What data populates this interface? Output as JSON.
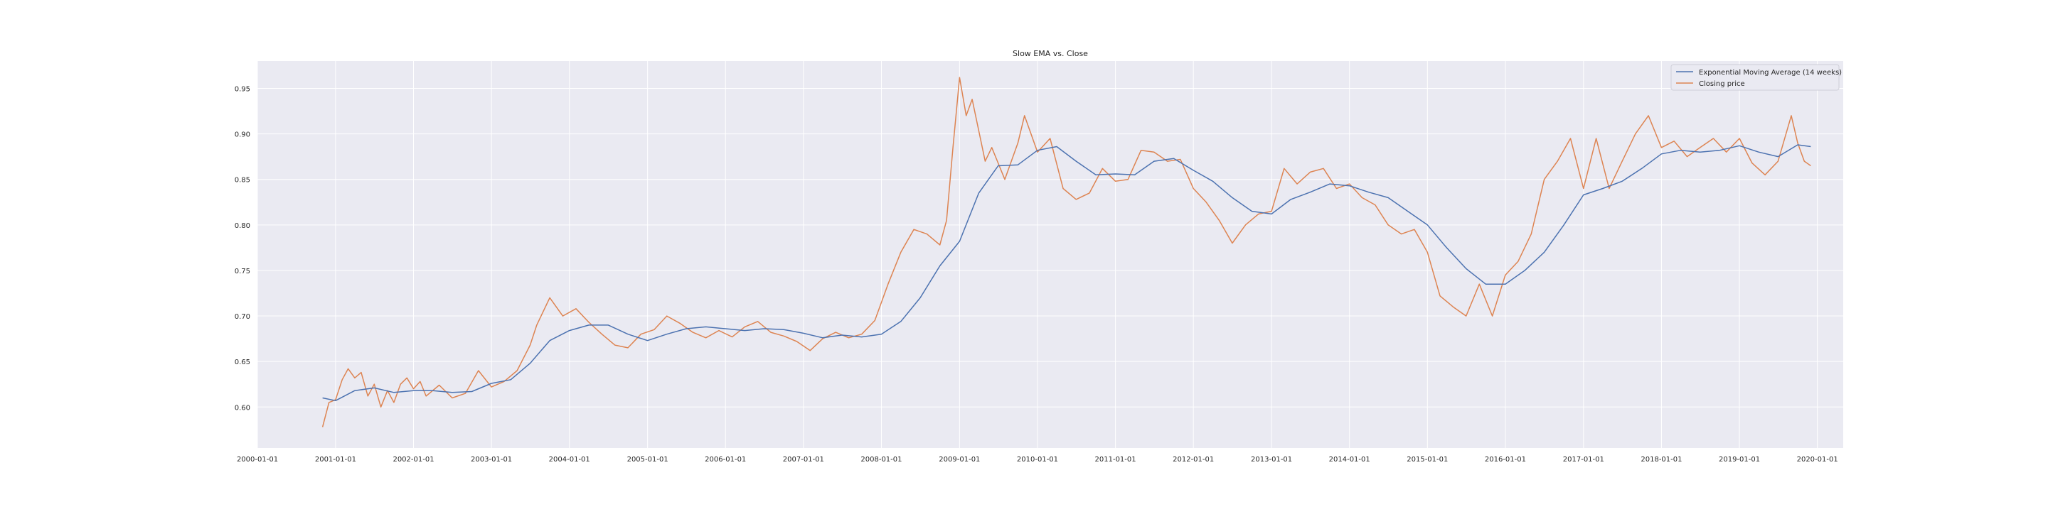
{
  "chart_data": {
    "type": "line",
    "title": "Slow EMA vs. Close",
    "xlabel": "",
    "ylabel": "",
    "xlim": [
      "2000-01-01",
      "2020-05-01"
    ],
    "ylim": [
      0.555,
      0.98
    ],
    "grid": true,
    "legend_position": "top-right",
    "x_ticks": [
      "2000-01-01",
      "2001-01-01",
      "2002-01-01",
      "2003-01-01",
      "2004-01-01",
      "2005-01-01",
      "2006-01-01",
      "2007-01-01",
      "2008-01-01",
      "2009-01-01",
      "2010-01-01",
      "2011-01-01",
      "2012-01-01",
      "2013-01-01",
      "2014-01-01",
      "2015-01-01",
      "2016-01-01",
      "2017-01-01",
      "2018-01-01",
      "2019-01-01",
      "2020-01-01"
    ],
    "y_ticks": [
      "0.60",
      "0.65",
      "0.70",
      "0.75",
      "0.80",
      "0.85",
      "0.90",
      "0.95"
    ],
    "series": [
      {
        "name": "Exponential Moving Average (14 weeks)",
        "color": "#4c72b0",
        "points": [
          [
            "2000-11-01",
            0.61
          ],
          [
            "2001-01-01",
            0.607
          ],
          [
            "2001-04-01",
            0.618
          ],
          [
            "2001-07-01",
            0.621
          ],
          [
            "2001-10-01",
            0.616
          ],
          [
            "2002-01-01",
            0.618
          ],
          [
            "2002-04-01",
            0.618
          ],
          [
            "2002-07-01",
            0.616
          ],
          [
            "2002-10-01",
            0.617
          ],
          [
            "2003-01-01",
            0.626
          ],
          [
            "2003-04-01",
            0.63
          ],
          [
            "2003-07-01",
            0.648
          ],
          [
            "2003-10-01",
            0.673
          ],
          [
            "2004-01-01",
            0.684
          ],
          [
            "2004-04-01",
            0.69
          ],
          [
            "2004-07-01",
            0.69
          ],
          [
            "2004-10-01",
            0.68
          ],
          [
            "2005-01-01",
            0.673
          ],
          [
            "2005-04-01",
            0.68
          ],
          [
            "2005-07-01",
            0.686
          ],
          [
            "2005-10-01",
            0.688
          ],
          [
            "2006-01-01",
            0.686
          ],
          [
            "2006-04-01",
            0.684
          ],
          [
            "2006-07-01",
            0.686
          ],
          [
            "2006-10-01",
            0.685
          ],
          [
            "2007-01-01",
            0.681
          ],
          [
            "2007-04-01",
            0.676
          ],
          [
            "2007-07-01",
            0.679
          ],
          [
            "2007-10-01",
            0.677
          ],
          [
            "2008-01-01",
            0.68
          ],
          [
            "2008-04-01",
            0.694
          ],
          [
            "2008-07-01",
            0.72
          ],
          [
            "2008-10-01",
            0.755
          ],
          [
            "2009-01-01",
            0.782
          ],
          [
            "2009-04-01",
            0.835
          ],
          [
            "2009-07-01",
            0.865
          ],
          [
            "2009-10-01",
            0.866
          ],
          [
            "2010-01-01",
            0.882
          ],
          [
            "2010-04-01",
            0.886
          ],
          [
            "2010-07-01",
            0.87
          ],
          [
            "2010-10-01",
            0.855
          ],
          [
            "2011-01-01",
            0.856
          ],
          [
            "2011-04-01",
            0.855
          ],
          [
            "2011-07-01",
            0.87
          ],
          [
            "2011-10-01",
            0.873
          ],
          [
            "2012-01-01",
            0.86
          ],
          [
            "2012-04-01",
            0.848
          ],
          [
            "2012-07-01",
            0.83
          ],
          [
            "2012-10-01",
            0.815
          ],
          [
            "2013-01-01",
            0.812
          ],
          [
            "2013-04-01",
            0.828
          ],
          [
            "2013-07-01",
            0.836
          ],
          [
            "2013-10-01",
            0.845
          ],
          [
            "2014-01-01",
            0.843
          ],
          [
            "2014-04-01",
            0.836
          ],
          [
            "2014-07-01",
            0.83
          ],
          [
            "2014-10-01",
            0.815
          ],
          [
            "2015-01-01",
            0.8
          ],
          [
            "2015-04-01",
            0.775
          ],
          [
            "2015-07-01",
            0.752
          ],
          [
            "2015-10-01",
            0.735
          ],
          [
            "2016-01-01",
            0.735
          ],
          [
            "2016-04-01",
            0.75
          ],
          [
            "2016-07-01",
            0.77
          ],
          [
            "2016-10-01",
            0.8
          ],
          [
            "2017-01-01",
            0.833
          ],
          [
            "2017-04-01",
            0.84
          ],
          [
            "2017-07-01",
            0.848
          ],
          [
            "2017-10-01",
            0.862
          ],
          [
            "2018-01-01",
            0.878
          ],
          [
            "2018-04-01",
            0.882
          ],
          [
            "2018-07-01",
            0.88
          ],
          [
            "2018-10-01",
            0.882
          ],
          [
            "2019-01-01",
            0.887
          ],
          [
            "2019-04-01",
            0.88
          ],
          [
            "2019-07-01",
            0.875
          ],
          [
            "2019-10-01",
            0.888
          ],
          [
            "2019-12-01",
            0.886
          ]
        ]
      },
      {
        "name": "Closing price",
        "color": "#dd8452",
        "points": [
          [
            "2000-11-01",
            0.578
          ],
          [
            "2000-12-01",
            0.605
          ],
          [
            "2001-01-01",
            0.608
          ],
          [
            "2001-02-01",
            0.63
          ],
          [
            "2001-03-01",
            0.642
          ],
          [
            "2001-04-01",
            0.632
          ],
          [
            "2001-05-01",
            0.638
          ],
          [
            "2001-06-01",
            0.612
          ],
          [
            "2001-07-01",
            0.625
          ],
          [
            "2001-08-01",
            0.6
          ],
          [
            "2001-09-01",
            0.618
          ],
          [
            "2001-10-01",
            0.605
          ],
          [
            "2001-11-01",
            0.625
          ],
          [
            "2001-12-01",
            0.632
          ],
          [
            "2002-01-01",
            0.62
          ],
          [
            "2002-02-01",
            0.628
          ],
          [
            "2002-03-01",
            0.612
          ],
          [
            "2002-05-01",
            0.624
          ],
          [
            "2002-07-01",
            0.61
          ],
          [
            "2002-09-01",
            0.615
          ],
          [
            "2002-11-01",
            0.64
          ],
          [
            "2003-01-01",
            0.622
          ],
          [
            "2003-03-01",
            0.628
          ],
          [
            "2003-05-01",
            0.64
          ],
          [
            "2003-07-01",
            0.668
          ],
          [
            "2003-08-01",
            0.69
          ],
          [
            "2003-10-01",
            0.72
          ],
          [
            "2003-12-01",
            0.7
          ],
          [
            "2004-02-01",
            0.708
          ],
          [
            "2004-04-01",
            0.693
          ],
          [
            "2004-06-01",
            0.68
          ],
          [
            "2004-08-01",
            0.668
          ],
          [
            "2004-10-01",
            0.665
          ],
          [
            "2004-12-01",
            0.68
          ],
          [
            "2005-02-01",
            0.685
          ],
          [
            "2005-04-01",
            0.7
          ],
          [
            "2005-06-01",
            0.692
          ],
          [
            "2005-08-01",
            0.682
          ],
          [
            "2005-10-01",
            0.676
          ],
          [
            "2005-12-01",
            0.684
          ],
          [
            "2006-02-01",
            0.677
          ],
          [
            "2006-04-01",
            0.688
          ],
          [
            "2006-06-01",
            0.694
          ],
          [
            "2006-08-01",
            0.682
          ],
          [
            "2006-10-01",
            0.678
          ],
          [
            "2006-12-01",
            0.672
          ],
          [
            "2007-02-01",
            0.662
          ],
          [
            "2007-04-01",
            0.675
          ],
          [
            "2007-06-01",
            0.682
          ],
          [
            "2007-08-01",
            0.676
          ],
          [
            "2007-10-01",
            0.68
          ],
          [
            "2007-12-01",
            0.695
          ],
          [
            "2008-02-01",
            0.735
          ],
          [
            "2008-04-01",
            0.77
          ],
          [
            "2008-06-01",
            0.795
          ],
          [
            "2008-08-01",
            0.79
          ],
          [
            "2008-10-01",
            0.778
          ],
          [
            "2008-11-01",
            0.805
          ],
          [
            "2008-12-01",
            0.885
          ],
          [
            "2009-01-01",
            0.962
          ],
          [
            "2009-02-01",
            0.92
          ],
          [
            "2009-03-01",
            0.938
          ],
          [
            "2009-05-01",
            0.87
          ],
          [
            "2009-06-01",
            0.885
          ],
          [
            "2009-08-01",
            0.85
          ],
          [
            "2009-10-01",
            0.89
          ],
          [
            "2009-11-01",
            0.92
          ],
          [
            "2010-01-01",
            0.88
          ],
          [
            "2010-03-01",
            0.895
          ],
          [
            "2010-05-01",
            0.84
          ],
          [
            "2010-07-01",
            0.828
          ],
          [
            "2010-09-01",
            0.835
          ],
          [
            "2010-11-01",
            0.862
          ],
          [
            "2011-01-01",
            0.848
          ],
          [
            "2011-03-01",
            0.85
          ],
          [
            "2011-05-01",
            0.882
          ],
          [
            "2011-07-01",
            0.88
          ],
          [
            "2011-09-01",
            0.87
          ],
          [
            "2011-11-01",
            0.872
          ],
          [
            "2012-01-01",
            0.84
          ],
          [
            "2012-03-01",
            0.825
          ],
          [
            "2012-05-01",
            0.805
          ],
          [
            "2012-07-01",
            0.78
          ],
          [
            "2012-09-01",
            0.8
          ],
          [
            "2012-11-01",
            0.812
          ],
          [
            "2013-01-01",
            0.815
          ],
          [
            "2013-03-01",
            0.862
          ],
          [
            "2013-05-01",
            0.845
          ],
          [
            "2013-07-01",
            0.858
          ],
          [
            "2013-09-01",
            0.862
          ],
          [
            "2013-11-01",
            0.84
          ],
          [
            "2014-01-01",
            0.845
          ],
          [
            "2014-03-01",
            0.83
          ],
          [
            "2014-05-01",
            0.822
          ],
          [
            "2014-07-01",
            0.8
          ],
          [
            "2014-09-01",
            0.79
          ],
          [
            "2014-11-01",
            0.795
          ],
          [
            "2015-01-01",
            0.77
          ],
          [
            "2015-03-01",
            0.722
          ],
          [
            "2015-05-01",
            0.71
          ],
          [
            "2015-07-01",
            0.7
          ],
          [
            "2015-09-01",
            0.735
          ],
          [
            "2015-11-01",
            0.7
          ],
          [
            "2016-01-01",
            0.745
          ],
          [
            "2016-03-01",
            0.76
          ],
          [
            "2016-05-01",
            0.79
          ],
          [
            "2016-07-01",
            0.85
          ],
          [
            "2016-09-01",
            0.87
          ],
          [
            "2016-11-01",
            0.895
          ],
          [
            "2017-01-01",
            0.84
          ],
          [
            "2017-03-01",
            0.895
          ],
          [
            "2017-05-01",
            0.84
          ],
          [
            "2017-07-01",
            0.87
          ],
          [
            "2017-09-01",
            0.9
          ],
          [
            "2017-11-01",
            0.92
          ],
          [
            "2018-01-01",
            0.885
          ],
          [
            "2018-03-01",
            0.892
          ],
          [
            "2018-05-01",
            0.875
          ],
          [
            "2018-07-01",
            0.885
          ],
          [
            "2018-09-01",
            0.895
          ],
          [
            "2018-11-01",
            0.88
          ],
          [
            "2019-01-01",
            0.895
          ],
          [
            "2019-03-01",
            0.868
          ],
          [
            "2019-05-01",
            0.855
          ],
          [
            "2019-07-01",
            0.87
          ],
          [
            "2019-09-01",
            0.92
          ],
          [
            "2019-10-01",
            0.89
          ],
          [
            "2019-11-01",
            0.87
          ],
          [
            "2019-12-01",
            0.865
          ]
        ]
      }
    ]
  }
}
